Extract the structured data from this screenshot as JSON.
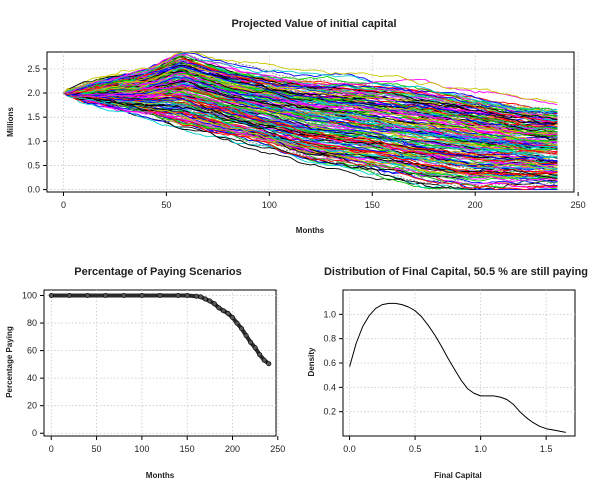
{
  "chart_data": [
    {
      "type": "line",
      "title": "Projected Value of initial capital",
      "xlabel": "Months",
      "ylabel": "Millions",
      "xlim": [
        -8,
        248
      ],
      "ylim": [
        -0.05,
        2.85
      ],
      "x_ticks": [
        0,
        50,
        100,
        150,
        200,
        250
      ],
      "y_ticks": [
        0.0,
        0.5,
        1.0,
        1.5,
        2.0,
        2.5
      ],
      "grid": true,
      "description_of_series": "about 200 simulated capital paths over 240 months",
      "start_value": 2.0,
      "months": 240,
      "scenario_count": 200,
      "envelope": {
        "x": [
          0,
          20,
          40,
          57,
          80,
          100,
          120,
          150,
          180,
          200,
          220,
          240
        ],
        "upper": [
          2.0,
          2.25,
          2.45,
          2.8,
          2.5,
          2.35,
          2.25,
          2.15,
          2.0,
          1.85,
          1.7,
          1.6
        ],
        "lower": [
          2.0,
          1.75,
          1.55,
          1.3,
          1.05,
          0.85,
          0.55,
          0.35,
          0.1,
          0.0,
          0.0,
          0.0
        ]
      },
      "colors": [
        "#000000",
        "#ff0000",
        "#00cd00",
        "#0000ff",
        "#00cdcd",
        "#ff00ff",
        "#c8c800",
        "#888888"
      ]
    },
    {
      "type": "line",
      "title": "Percentage of Paying Scenarios",
      "xlabel": "Months",
      "ylabel": "Percentage Paying",
      "xlim": [
        -8,
        248
      ],
      "ylim": [
        -2,
        104
      ],
      "x_ticks": [
        0,
        50,
        100,
        150,
        200,
        250
      ],
      "y_ticks": [
        0,
        20,
        40,
        60,
        80,
        100
      ],
      "grid": true,
      "x": [
        0,
        20,
        40,
        60,
        80,
        100,
        120,
        140,
        150,
        160,
        165,
        170,
        175,
        180,
        185,
        190,
        195,
        200,
        205,
        210,
        215,
        220,
        225,
        230,
        235,
        240
      ],
      "y": [
        100,
        100,
        100,
        100,
        100,
        100,
        100,
        100,
        100,
        99.5,
        99,
        97.5,
        96,
        94,
        91,
        89,
        87,
        84,
        80,
        76,
        71,
        66,
        62,
        57,
        53,
        50.5
      ]
    },
    {
      "type": "line",
      "title": "Distribution of Final Capital, 50.5 % are still paying",
      "xlabel": "Final Capital",
      "ylabel": "Density",
      "xlim": [
        -0.05,
        1.72
      ],
      "ylim": [
        0.0,
        1.2
      ],
      "x_ticks": [
        0.0,
        0.5,
        1.0,
        1.5
      ],
      "y_ticks": [
        0.2,
        0.4,
        0.6,
        0.8,
        1.0
      ],
      "grid": true,
      "x": [
        0.0,
        0.05,
        0.1,
        0.15,
        0.2,
        0.25,
        0.3,
        0.35,
        0.4,
        0.45,
        0.5,
        0.55,
        0.6,
        0.65,
        0.7,
        0.75,
        0.8,
        0.85,
        0.9,
        0.95,
        1.0,
        1.05,
        1.1,
        1.15,
        1.2,
        1.25,
        1.3,
        1.35,
        1.4,
        1.45,
        1.5,
        1.55,
        1.6,
        1.65
      ],
      "y": [
        0.57,
        0.76,
        0.9,
        0.99,
        1.05,
        1.08,
        1.09,
        1.09,
        1.08,
        1.06,
        1.03,
        0.98,
        0.91,
        0.83,
        0.74,
        0.64,
        0.55,
        0.46,
        0.39,
        0.35,
        0.33,
        0.33,
        0.33,
        0.32,
        0.3,
        0.26,
        0.2,
        0.15,
        0.11,
        0.08,
        0.06,
        0.05,
        0.04,
        0.03
      ]
    }
  ]
}
